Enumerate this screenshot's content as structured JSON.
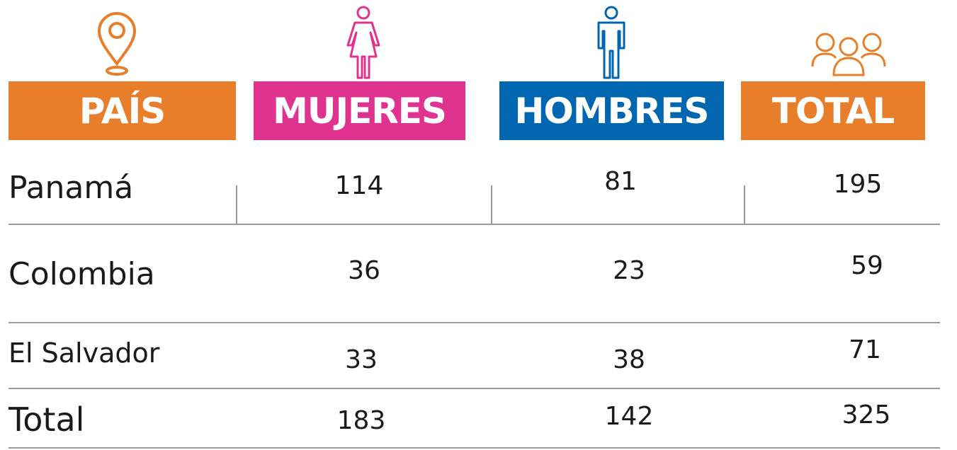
{
  "table": {
    "headers": [
      "PAÍS",
      "MUJERES",
      "HOMBRES",
      "TOTAL"
    ],
    "rows": [
      [
        "Panamá",
        114,
        81,
        195
      ],
      [
        "Colombia",
        36,
        23,
        59
      ],
      [
        "El Salvador",
        33,
        38,
        71
      ],
      [
        "Total",
        183,
        142,
        325
      ]
    ]
  }
}
